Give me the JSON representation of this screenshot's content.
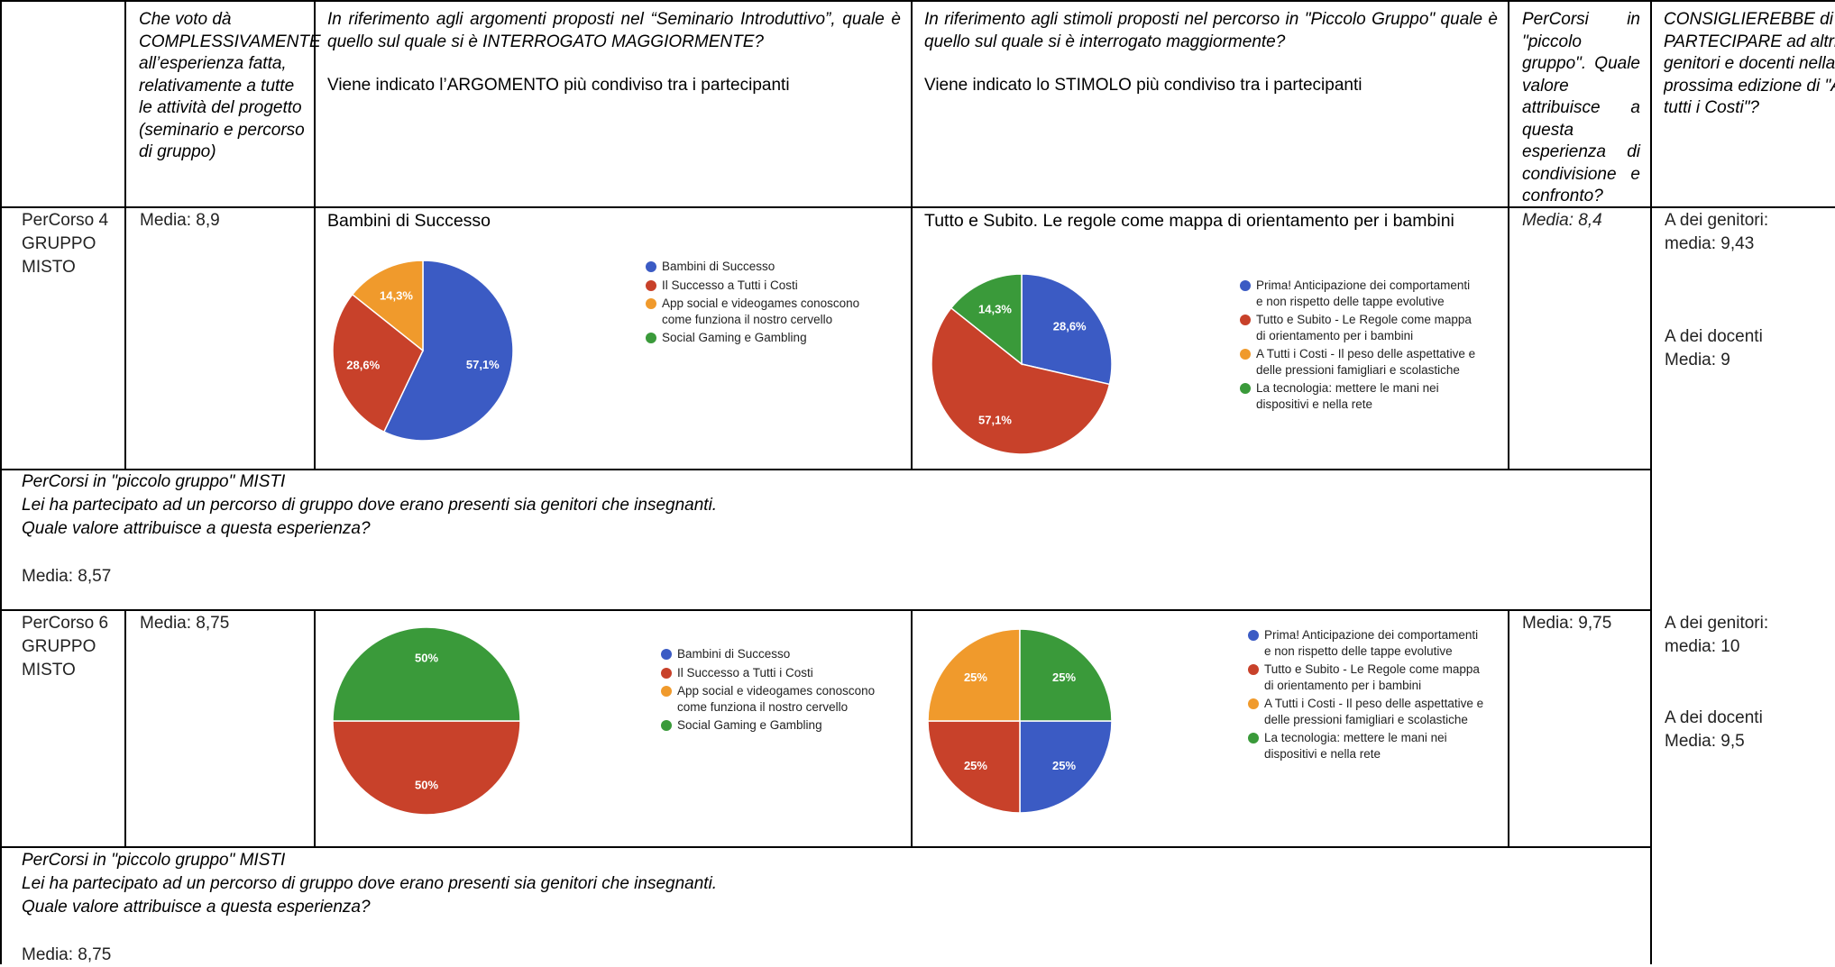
{
  "header": {
    "col1": [
      "Che voto dà",
      "COMPLESSIVAMENTE",
      "all’esperienza fatta,",
      "relativamente a tutte",
      "le attività del progetto",
      "(seminario e percorso",
      "di gruppo)"
    ],
    "col2_lines": [
      "In riferimento agli argomenti proposti nel “Seminario Introduttivo”, quale è",
      "quello sul quale si è INTERROGATO MAGGIORMENTE?"
    ],
    "col2_note": "Viene indicato l’ARGOMENTO più condiviso tra i partecipanti",
    "col3_lines": [
      "In riferimento agli stimoli proposti nel percorso in \"Piccolo Gruppo\" quale è",
      "quello sul quale si è interrogato maggiormente?"
    ],
    "col3_note": "Viene indicato lo STIMOLO più condiviso tra i partecipanti",
    "col4": [
      "PerCorsi in",
      "\"piccolo",
      "gruppo\". Quale",
      "valore",
      "attribuisce a",
      "questa",
      "esperienza di",
      "condivisione e",
      "confronto?"
    ],
    "col5": [
      "CONSIGLIEREBBE di",
      "PARTECIPARE ad altri",
      "genitori e docenti nella",
      "prossima edizione di \"A",
      "tutti i Costi\"?"
    ]
  },
  "rows": [
    {
      "name": [
        "PerCorso 4",
        "GRUPPO",
        "MISTO"
      ],
      "overall": "Media: 8,9",
      "topic_title": "Bambini di Successo",
      "stimulus_title": "Tutto e Subito. Le regole come mappa di orientamento per i bambini",
      "group_value": "Media: 8,4",
      "recommend": [
        "A dei genitori:",
        "media: 9,43",
        "A dei docenti",
        "Media: 9"
      ],
      "mixed": [
        "PerCorsi in \"piccolo gruppo\" MISTI",
        "Lei ha partecipato ad un percorso di gruppo dove erano presenti sia genitori che insegnanti.",
        "Quale valore attribuisce a questa esperienza?"
      ],
      "mixed_value": "Media: 8,57"
    },
    {
      "name": [
        "PerCorso 6",
        "GRUPPO",
        "MISTO"
      ],
      "overall": "Media: 8,75",
      "group_value": "Media: 9,75",
      "recommend": [
        "A dei genitori:",
        "media: 10",
        "A dei docenti",
        "Media: 9,5"
      ],
      "mixed": [
        "PerCorsi in \"piccolo gruppo\" MISTI",
        "Lei ha partecipato ad un percorso di gruppo dove erano presenti sia genitori che insegnanti.",
        "Quale valore attribuisce a questa esperienza?"
      ],
      "mixed_value": "Media: 8,75"
    }
  ],
  "legend_topics": [
    {
      "label": [
        "Bambini di Successo"
      ],
      "color": "#3b5bc4"
    },
    {
      "label": [
        "Il Successo a Tutti i Costi"
      ],
      "color": "#c8412a"
    },
    {
      "label": [
        "App social e videogames conoscono",
        "come funziona il nostro cervello"
      ],
      "color": "#f09a2c"
    },
    {
      "label": [
        "Social Gaming e Gambling"
      ],
      "color": "#3a9a3a"
    }
  ],
  "legend_stimuli": [
    {
      "label": [
        "Prima! Anticipazione dei comportamenti",
        "e non rispetto delle tappe evolutive"
      ],
      "color": "#3b5bc4"
    },
    {
      "label": [
        "Tutto e Subito - Le Regole come mappa",
        "di orientamento per i bambini"
      ],
      "color": "#c8412a"
    },
    {
      "label": [
        "A Tutti i Costi - Il peso delle aspettative e",
        "delle pressioni famigliari e scolastiche"
      ],
      "color": "#f09a2c"
    },
    {
      "label": [
        "La tecnologia: mettere le mani nei",
        "dispositivi e nella rete"
      ],
      "color": "#3a9a3a"
    }
  ],
  "chart_data": [
    {
      "type": "pie",
      "categories": [
        "Bambini di Successo",
        "Il Successo a Tutti i Costi",
        "App social e videogames conoscono come funziona il nostro cervello",
        "Social Gaming e Gambling"
      ],
      "values": [
        57.1,
        28.6,
        14.3,
        0
      ],
      "labels": [
        "57,1%",
        "28,6%",
        "14,3%",
        ""
      ],
      "colors": [
        "#3b5bc4",
        "#c8412a",
        "#f09a2c",
        "#3a9a3a"
      ]
    },
    {
      "type": "pie",
      "categories": [
        "Prima! Anticipazione dei comportamenti e non rispetto delle tappe evolutive",
        "Tutto e Subito - Le Regole come mappa di orientamento per i bambini",
        "A Tutti i Costi - Il peso delle aspettative e delle pressioni famigliari e scolastiche",
        "La tecnologia: mettere le mani nei dispositivi e nella rete"
      ],
      "values": [
        28.6,
        57.1,
        0,
        14.3
      ],
      "labels": [
        "28,6%",
        "57,1%",
        "",
        "14,3%"
      ],
      "colors": [
        "#3b5bc4",
        "#c8412a",
        "#f09a2c",
        "#3a9a3a"
      ]
    },
    {
      "type": "pie",
      "categories": [
        "Bambini di Successo",
        "Il Successo a Tutti i Costi",
        "App social e videogames conoscono come funziona il nostro cervello",
        "Social Gaming e Gambling"
      ],
      "values": [
        0,
        50,
        0,
        50
      ],
      "labels": [
        "",
        "50%",
        "",
        "50%"
      ],
      "colors": [
        "#3b5bc4",
        "#c8412a",
        "#f09a2c",
        "#3a9a3a"
      ]
    },
    {
      "type": "pie",
      "categories": [
        "Prima! Anticipazione dei comportamenti e non rispetto delle tappe evolutive",
        "Tutto e Subito - Le Regole come mappa di orientamento per i bambini",
        "A Tutti i Costi - Il peso delle aspettative e delle pressioni famigliari e scolastiche",
        "La tecnologia: mettere le mani nei dispositivi e nella rete"
      ],
      "values": [
        25,
        25,
        25,
        25
      ],
      "labels": [
        "25%",
        "25%",
        "25%",
        "25%"
      ],
      "colors": [
        "#3b5bc4",
        "#c8412a",
        "#f09a2c",
        "#3a9a3a"
      ]
    }
  ]
}
